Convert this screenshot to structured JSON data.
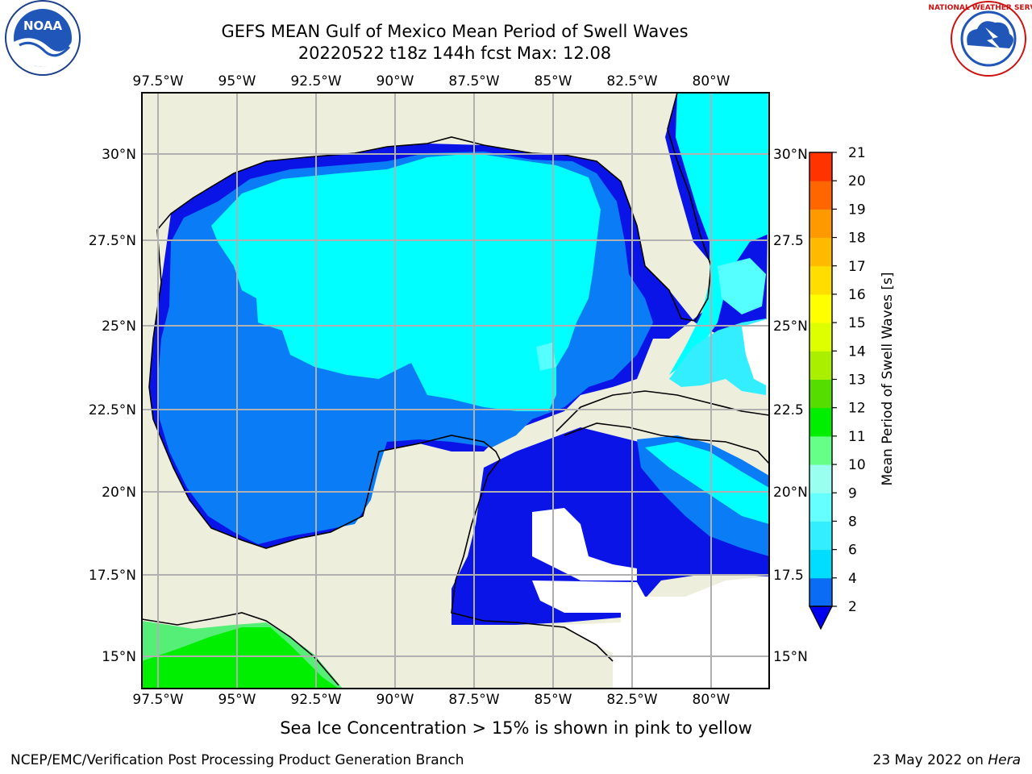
{
  "title_line1": "GEFS MEAN Gulf of Mexico Mean Period of Swell Waves",
  "title_line2": "20220522 t18z 144h fcst   Max: 12.08",
  "logo_left_text": "NOAA",
  "logo_left_ring_text": "NATIONAL OCEANIC AND ATMOSPHERIC ADMINISTRATION · U.S. DEPARTMENT OF COMMERCE",
  "logo_right_ring_text": "NATIONAL WEATHER SERVICE",
  "longitude_labels": [
    "97.5°W",
    "95°W",
    "92.5°W",
    "90°W",
    "87.5°W",
    "85°W",
    "82.5°W",
    "80°W"
  ],
  "latitude_labels_left": [
    "30°N",
    "27.5°N",
    "25°N",
    "22.5°N",
    "20°N",
    "17.5°N",
    "15°N"
  ],
  "latitude_labels_right": [
    "30°N",
    "27.5",
    "25°N",
    "22.5",
    "20°N",
    "17.5",
    "15°N"
  ],
  "colorbar": {
    "label": "Mean Period of Swell Waves [s]",
    "ticks": [
      "2",
      "4",
      "6",
      "8",
      "9",
      "10",
      "11",
      "12",
      "13",
      "14",
      "15",
      "16",
      "17",
      "18",
      "19",
      "20",
      "21"
    ],
    "colors": [
      "#0a6cf5",
      "#00ddff",
      "#33eeff",
      "#66ffff",
      "#99ffee",
      "#66ff88",
      "#00ee00",
      "#55dd00",
      "#aaee00",
      "#ddff00",
      "#ffff00",
      "#ffdd00",
      "#ffbb00",
      "#ff9900",
      "#ff6600",
      "#ff3300",
      "#ff0000"
    ],
    "extend_color": "#0000ee"
  },
  "field_colors": {
    "land": "#eeeedd",
    "ocean_low": "#0a14e6",
    "ocean_mid": "#0a7cf5",
    "ocean_high": "#00ffff",
    "ocean_higher": "#55ffff",
    "pacific_green": "#00ee00",
    "pacific_lightgreen": "#55ee77"
  },
  "caption": "Sea Ice Concentration > 15% is shown in pink to yellow",
  "footer_left": "NCEP/EMC/Verification Post Processing Product Generation Branch",
  "footer_right_date": "23 May 2022 on",
  "footer_right_host": "Hera"
}
